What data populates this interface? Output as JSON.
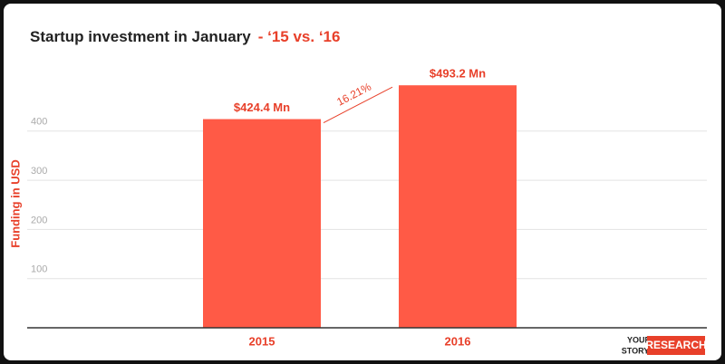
{
  "chart_data": {
    "type": "bar",
    "title": "Startup investment in January",
    "title_suffix": "-  ‘15 vs. ‘16",
    "y_label": "Funding in USD",
    "categories": [
      "2015",
      "2016"
    ],
    "values": [
      424.4,
      493.2
    ],
    "value_labels": [
      "$424.4 Mn",
      "$493.2 Mn"
    ],
    "annotation": "16.21%",
    "color": "#ff5a46",
    "ylim": [
      0,
      500
    ],
    "yticks": [
      100,
      200,
      300,
      400
    ],
    "grid": true,
    "logo": {
      "top": "YOUR",
      "middle": "STORY",
      "badge": "RESEARCH"
    }
  }
}
